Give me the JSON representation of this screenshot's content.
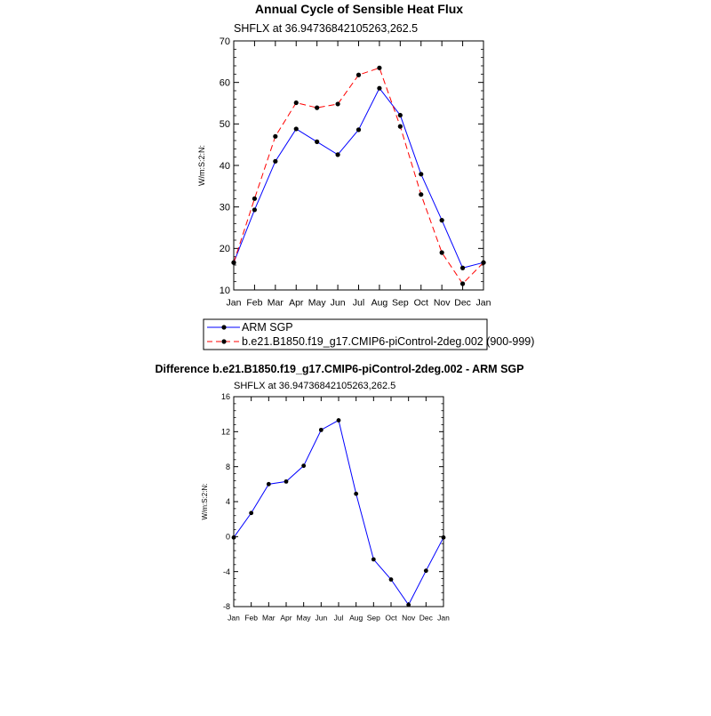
{
  "chart_data": [
    {
      "type": "line",
      "title": "Annual Cycle of Sensible Heat Flux",
      "subtitle": "SHFLX at 36.94736842105263,262.5",
      "xlabel": "",
      "ylabel": "W/m:S:2:N:",
      "categories": [
        "Jan",
        "Feb",
        "Mar",
        "Apr",
        "May",
        "Jun",
        "Jul",
        "Aug",
        "Sep",
        "Oct",
        "Nov",
        "Dec",
        "Jan"
      ],
      "ylim": [
        10,
        70
      ],
      "yticks": [
        10,
        20,
        30,
        40,
        50,
        60,
        70
      ],
      "legend_position": "bottom",
      "series": [
        {
          "name": "ARM SGP",
          "color": "#0000ff",
          "dash": "solid",
          "values": [
            16.6,
            29.3,
            41.0,
            48.8,
            45.7,
            42.6,
            48.6,
            58.6,
            52.1,
            37.9,
            26.8,
            15.3,
            16.6
          ]
        },
        {
          "name": "b.e21.B1850.f19_g17.CMIP6-piControl-2deg.002 (900-999)",
          "color": "#ff0000",
          "dash": "dashed",
          "values": [
            16.6,
            32.0,
            47.0,
            55.1,
            53.9,
            54.8,
            61.8,
            63.5,
            49.4,
            33.0,
            19.0,
            11.5,
            16.6
          ]
        }
      ]
    },
    {
      "type": "line",
      "title": "Difference b.e21.B1850.f19_g17.CMIP6-piControl-2deg.002 - ARM SGP",
      "subtitle": "SHFLX at 36.94736842105263,262.5",
      "xlabel": "",
      "ylabel": "W/m:S:2:N:",
      "categories": [
        "Jan",
        "Feb",
        "Mar",
        "Apr",
        "May",
        "Jun",
        "Jul",
        "Aug",
        "Sep",
        "Oct",
        "Nov",
        "Dec",
        "Jan"
      ],
      "ylim": [
        -8,
        16
      ],
      "yticks": [
        -8,
        -4,
        0,
        4,
        8,
        12,
        16
      ],
      "series": [
        {
          "name": "Difference",
          "color": "#0000ff",
          "dash": "solid",
          "values": [
            -0.1,
            2.7,
            6.0,
            6.3,
            8.1,
            12.2,
            13.3,
            4.9,
            -2.6,
            -4.9,
            -7.8,
            -3.9,
            -0.1
          ]
        }
      ]
    }
  ]
}
